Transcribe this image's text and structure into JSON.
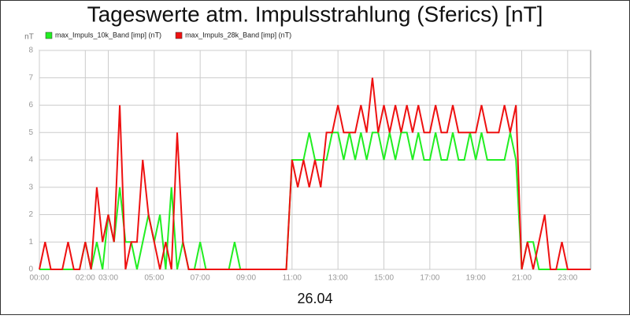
{
  "chart_data": {
    "type": "line",
    "title": "Tageswerte atm. Impulsstrahlung (Sferics) [nT]",
    "y_label": "nT",
    "x_label": "26.04",
    "x": [
      0,
      0.25,
      0.5,
      0.75,
      1,
      1.25,
      1.5,
      1.75,
      2,
      2.25,
      2.5,
      2.75,
      3,
      3.25,
      3.5,
      3.75,
      4,
      4.25,
      4.5,
      4.75,
      5,
      5.25,
      5.5,
      5.75,
      6,
      6.25,
      6.5,
      6.75,
      7,
      7.25,
      7.5,
      7.75,
      8,
      8.25,
      8.5,
      8.75,
      9,
      9.25,
      9.5,
      9.75,
      10,
      10.25,
      10.5,
      10.75,
      11,
      11.25,
      11.5,
      11.75,
      12,
      12.25,
      12.5,
      12.75,
      13,
      13.25,
      13.5,
      13.75,
      14,
      14.25,
      14.5,
      14.75,
      15,
      15.25,
      15.5,
      15.75,
      16,
      16.25,
      16.5,
      16.75,
      17,
      17.25,
      17.5,
      17.75,
      18,
      18.25,
      18.5,
      18.75,
      19,
      19.25,
      19.5,
      19.75,
      20,
      20.25,
      20.5,
      20.75,
      21,
      21.25,
      21.5,
      21.75,
      22,
      22.25,
      22.5,
      22.75,
      23,
      23.25,
      23.5,
      23.75,
      24
    ],
    "series": [
      {
        "name": "max_Impuls_10k_Band [imp] (nT)",
        "color": "#22ee22",
        "values": [
          0,
          0,
          0,
          0,
          0,
          0,
          0,
          0,
          1,
          0,
          1,
          0,
          2,
          1,
          3,
          1,
          1,
          0,
          1,
          2,
          1,
          2,
          0,
          3,
          0,
          1,
          0,
          0,
          1,
          0,
          0,
          0,
          0,
          0,
          1,
          0,
          0,
          0,
          0,
          0,
          0,
          0,
          0,
          0,
          4,
          4,
          4,
          5,
          4,
          4,
          4,
          5,
          5,
          4,
          5,
          4,
          5,
          4,
          5,
          5,
          4,
          5,
          4,
          5,
          5,
          4,
          5,
          4,
          4,
          5,
          4,
          4,
          5,
          4,
          4,
          5,
          4,
          5,
          4,
          4,
          4,
          4,
          5,
          4,
          0,
          1,
          1,
          0,
          0,
          0,
          0,
          0,
          0,
          0,
          0,
          0,
          0
        ]
      },
      {
        "name": "max_Impuls_28k_Band [imp] (nT)",
        "color": "#ee1111",
        "values": [
          0,
          1,
          0,
          0,
          0,
          1,
          0,
          0,
          1,
          0,
          3,
          1,
          2,
          1,
          6,
          0,
          1,
          1,
          4,
          2,
          1,
          0,
          1,
          0,
          5,
          1,
          0,
          0,
          0,
          0,
          0,
          0,
          0,
          0,
          0,
          0,
          0,
          0,
          0,
          0,
          0,
          0,
          0,
          0,
          4,
          3,
          4,
          3,
          4,
          3,
          5,
          5,
          6,
          5,
          5,
          5,
          6,
          5,
          7,
          5,
          6,
          5,
          6,
          5,
          6,
          5,
          6,
          5,
          5,
          6,
          5,
          5,
          6,
          5,
          5,
          5,
          5,
          6,
          5,
          5,
          5,
          6,
          5,
          6,
          0,
          1,
          0,
          1,
          2,
          0,
          0,
          1,
          0,
          0,
          0,
          0,
          0
        ]
      }
    ],
    "xlim": [
      0,
      24
    ],
    "xticks": [
      {
        "value": 0,
        "label": "00:00"
      },
      {
        "value": 2,
        "label": "02:00"
      },
      {
        "value": 3,
        "label": "03:00"
      },
      {
        "value": 5,
        "label": "05:00"
      },
      {
        "value": 7,
        "label": "07:00"
      },
      {
        "value": 9,
        "label": "09:00"
      },
      {
        "value": 11,
        "label": "11:00"
      },
      {
        "value": 13,
        "label": "13:00"
      },
      {
        "value": 15,
        "label": "15:00"
      },
      {
        "value": 17,
        "label": "17:00"
      },
      {
        "value": 19,
        "label": "19:00"
      },
      {
        "value": 21,
        "label": "21:00"
      },
      {
        "value": 23,
        "label": "23:00"
      }
    ],
    "ylim": [
      0,
      8
    ],
    "yticks": [
      0,
      1,
      2,
      3,
      4,
      5,
      6,
      7,
      8
    ],
    "grid": true,
    "legend": "top-left"
  }
}
